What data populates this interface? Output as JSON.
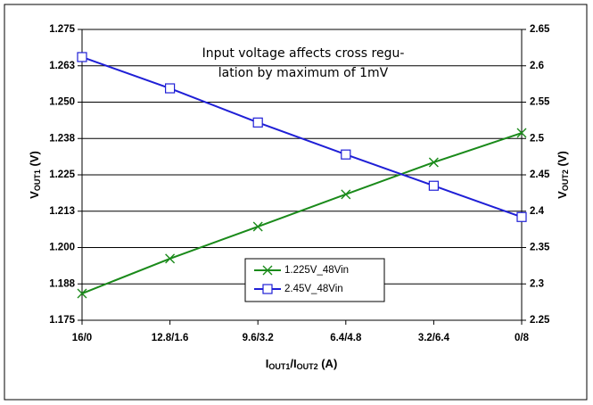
{
  "chart_data": {
    "type": "line",
    "annotation": [
      "Input voltage affects cross regu-",
      "lation by maximum of 1mV"
    ],
    "xlabel": [
      "I",
      "OUT1",
      "/I",
      "OUT2",
      " (A)"
    ],
    "ylabel": [
      "V",
      "OUT1",
      " (V)"
    ],
    "y2label": [
      "V",
      "OUT2",
      " (V)"
    ],
    "categories": [
      "16/0",
      "12.8/1.6",
      "9.6/3.2",
      "6.4/4.8",
      "3.2/6.4",
      "0/8"
    ],
    "series": [
      {
        "name": "1.225V_48Vin",
        "color": "#1a8a1a",
        "marker": "x",
        "values": [
          1.1842,
          1.1962,
          1.2072,
          1.2183,
          1.2293,
          1.2394
        ]
      },
      {
        "name": "2.45V_48Vin",
        "color": "#1f1fd6",
        "marker": "square",
        "axis": "y2",
        "values": [
          2.612,
          2.569,
          2.522,
          2.478,
          2.435,
          2.392
        ]
      }
    ],
    "ylim": [
      1.175,
      1.275
    ],
    "yticks": [
      1.175,
      {
        "value": 1.1875,
        "label": "1.188"
      },
      {
        "value": 1.2,
        "label": "1.200"
      },
      {
        "value": 1.2125,
        "label": "1.213"
      },
      1.225,
      {
        "value": 1.2375,
        "label": "1.238"
      },
      {
        "value": 1.25,
        "label": "1.250"
      },
      {
        "value": 1.2625,
        "label": "1.263"
      },
      1.275
    ],
    "y2lim": [
      2.25,
      2.65
    ],
    "y2ticks": [
      2.25,
      2.3,
      2.35,
      2.4,
      2.45,
      2.5,
      2.55,
      2.6,
      2.65
    ],
    "grid": true,
    "legend": "bottom-center"
  }
}
